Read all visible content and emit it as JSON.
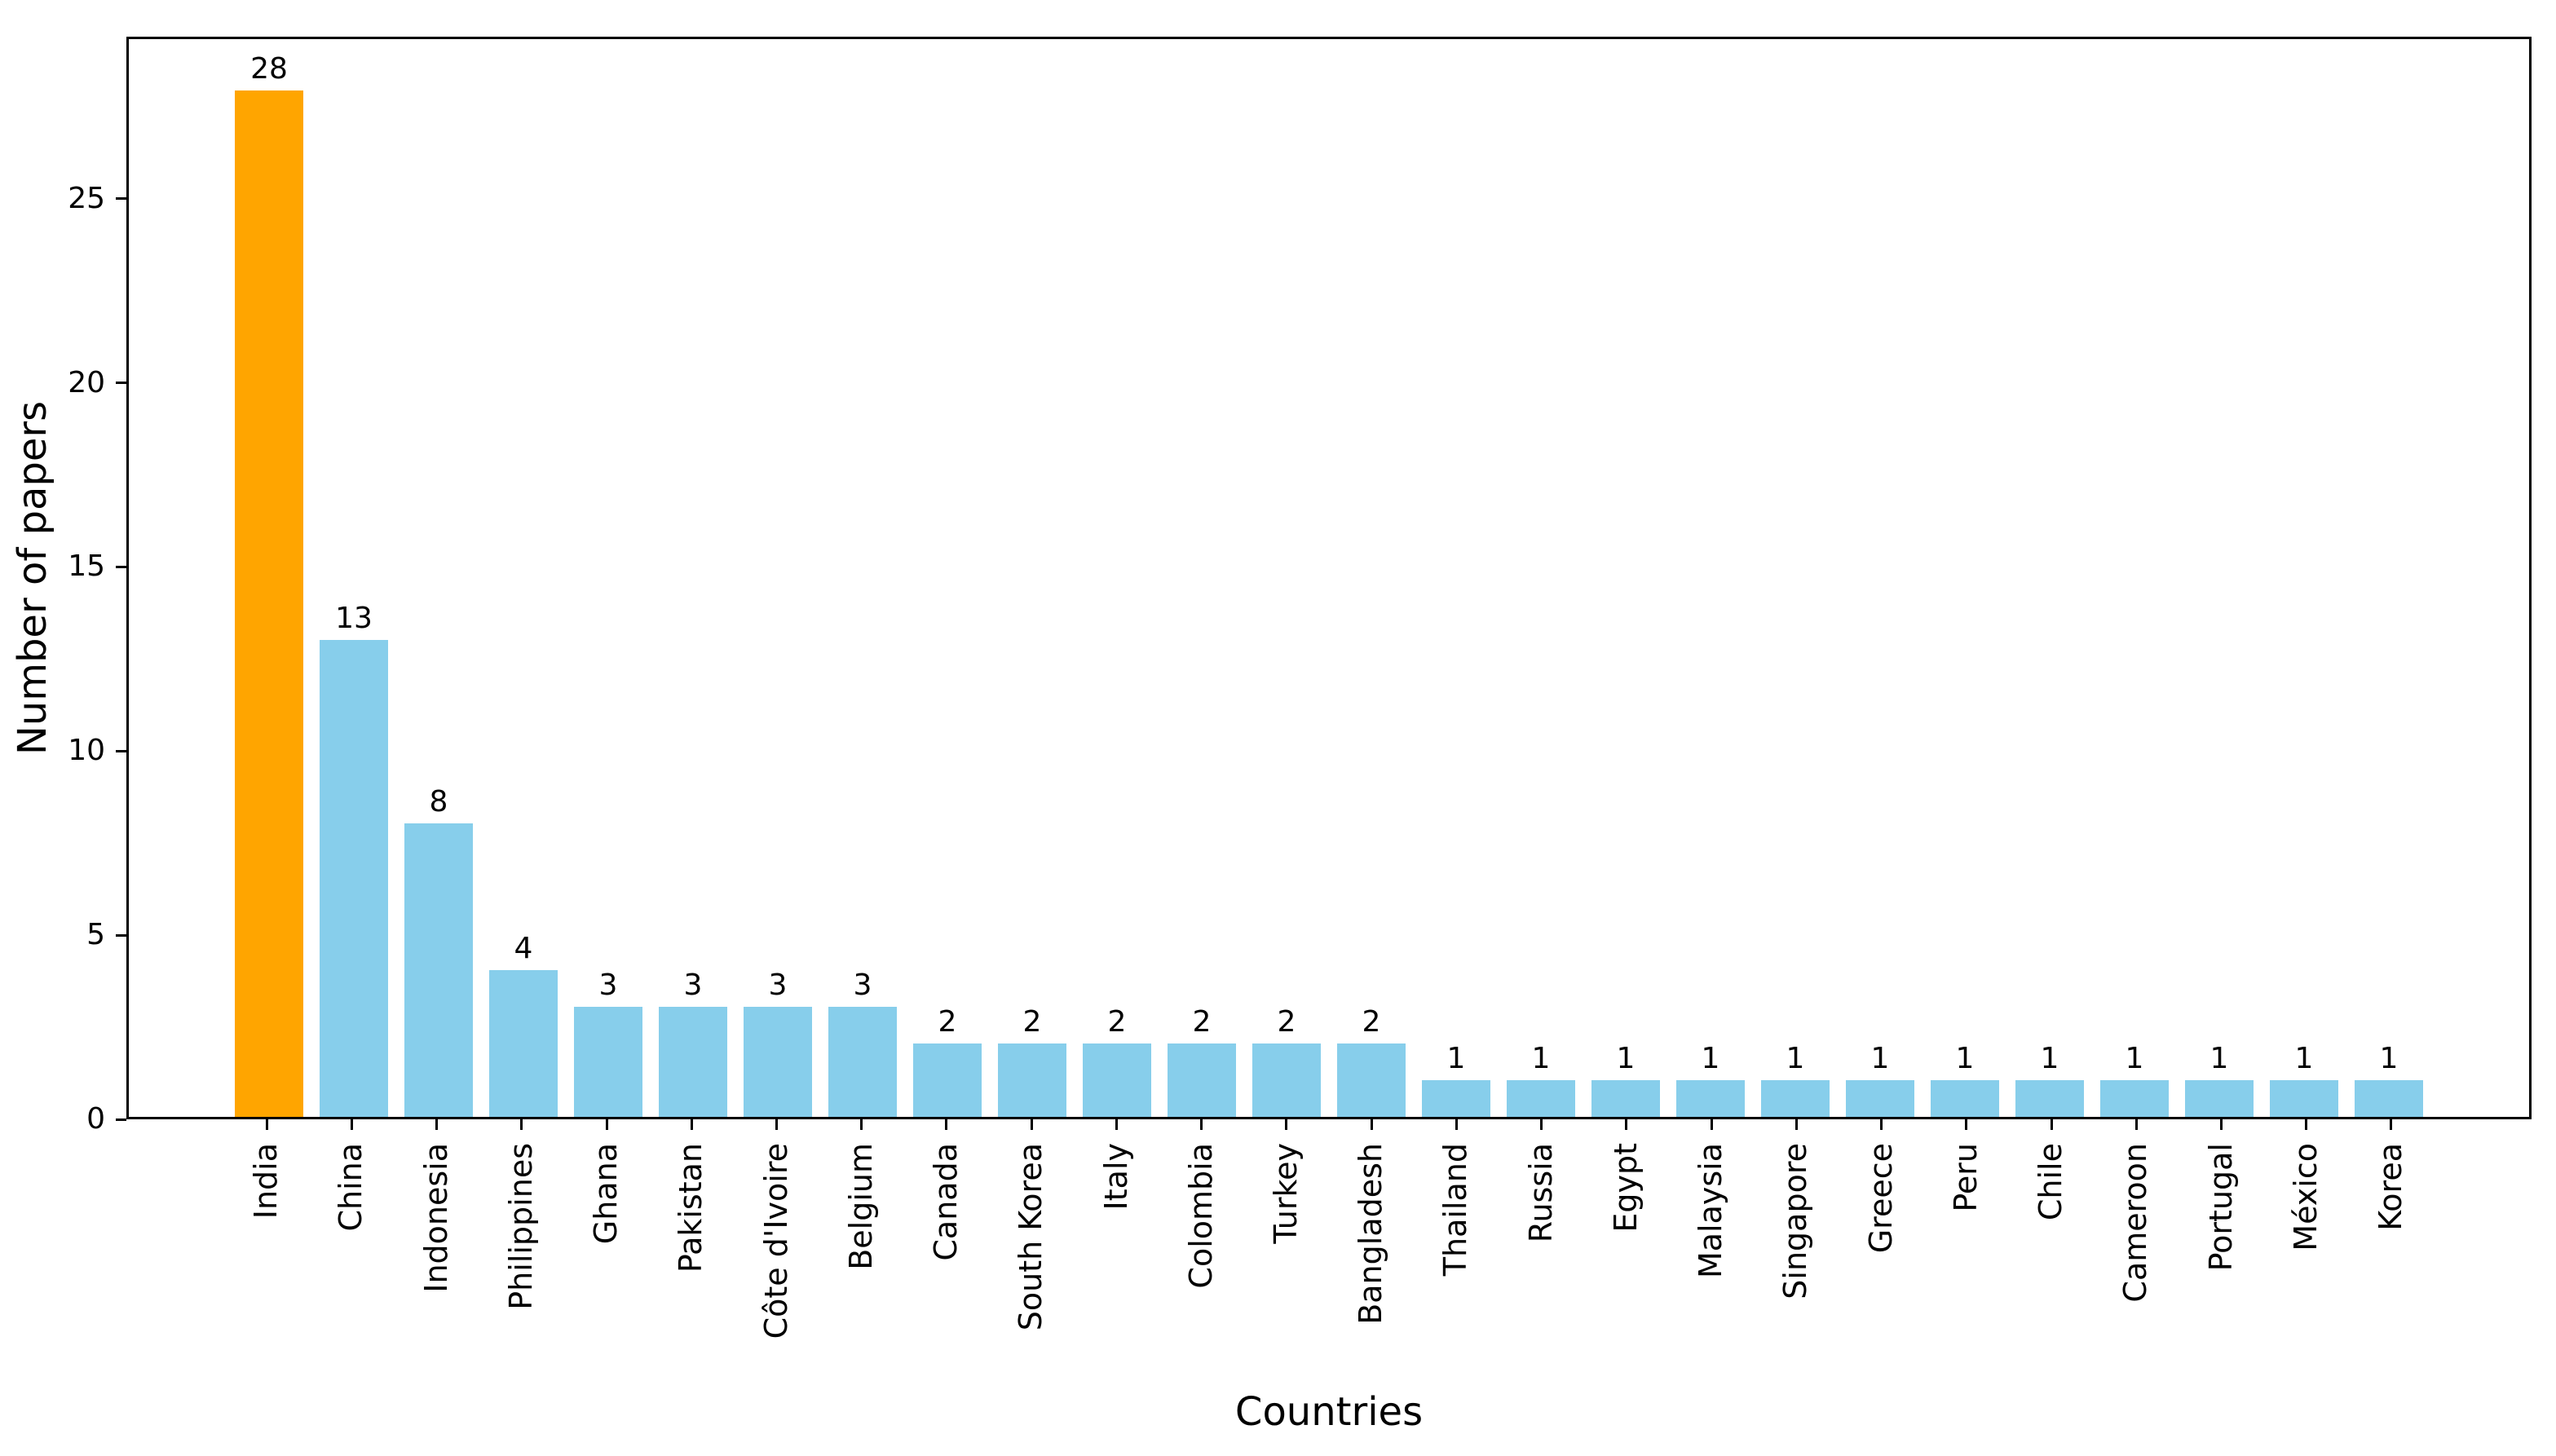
{
  "figure": {
    "background": "#ffffff"
  },
  "chart_data": {
    "type": "bar",
    "title": "",
    "xlabel": "Countries",
    "ylabel": "Number of papers",
    "categories": [
      "India",
      "China",
      "Indonesia",
      "Philippines",
      "Ghana",
      "Pakistan",
      "Côte d'Ivoire",
      "Belgium",
      "Canada",
      "South Korea",
      "Italy",
      "Colombia",
      "Turkey",
      "Bangladesh",
      "Thailand",
      "Russia",
      "Egypt",
      "Malaysia",
      "Singapore",
      "Greece",
      "Peru",
      "Chile",
      "Cameroon",
      "Portugal",
      "México",
      "Korea"
    ],
    "values": [
      28,
      13,
      8,
      4,
      3,
      3,
      3,
      3,
      2,
      2,
      2,
      2,
      2,
      2,
      1,
      1,
      1,
      1,
      1,
      1,
      1,
      1,
      1,
      1,
      1,
      1
    ],
    "bar_color_default": "#87CEEB",
    "bar_color_highlight": "#FFA500",
    "highlight_index": 0,
    "ylim": [
      0,
      29.4
    ],
    "yticks": [
      0,
      5,
      10,
      15,
      20,
      25
    ],
    "x_tick_rotation": 90,
    "grid": false,
    "legend_position": "none",
    "value_labels_shown": true
  }
}
